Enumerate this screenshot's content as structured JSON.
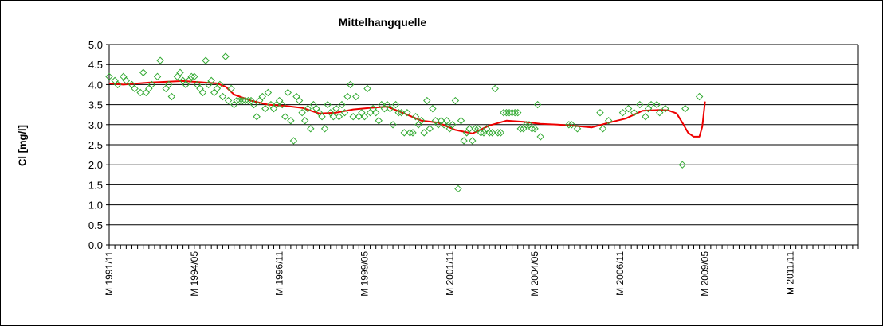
{
  "chart_data": {
    "type": "line",
    "title": "Mittelhangquelle",
    "xlabel": "",
    "ylabel": "Cl [mg/l]",
    "ylim": [
      0.0,
      5.0
    ],
    "yticks": [
      "0.0",
      "0.5",
      "1.0",
      "1.5",
      "2.0",
      "2.5",
      "3.0",
      "3.5",
      "4.0",
      "4.5",
      "5.0"
    ],
    "xlim": [
      "1991-11",
      "2013-11"
    ],
    "xticks": [
      {
        "label": "M 1991/11",
        "date": "1991-11"
      },
      {
        "label": "M 1994/05",
        "date": "1994-05"
      },
      {
        "label": "M 1996/11",
        "date": "1996-11"
      },
      {
        "label": "M 1999/05",
        "date": "1999-05"
      },
      {
        "label": "M 2001/11",
        "date": "2001-11"
      },
      {
        "label": "M 2004/05",
        "date": "2004-05"
      },
      {
        "label": "M 2006/11",
        "date": "2006-11"
      },
      {
        "label": "M 2009/05",
        "date": "2009-05"
      },
      {
        "label": "M 2011/11",
        "date": "2011-11"
      }
    ],
    "grid": true,
    "legend": "none",
    "colors": {
      "points": "#33aa33",
      "line": "#ee0000",
      "grid": "#000000"
    },
    "series": [
      {
        "marker": "diamond",
        "x": [
          "1991-11",
          "1992-01",
          "1992-02",
          "1992-04",
          "1992-05",
          "1992-07",
          "1992-08",
          "1992-10",
          "1992-11",
          "1992-12",
          "1993-01",
          "1993-02",
          "1993-04",
          "1993-05",
          "1993-07",
          "1993-08",
          "1993-09",
          "1993-11",
          "1993-12",
          "1994-01",
          "1994-02",
          "1994-03",
          "1994-04",
          "1994-05",
          "1994-06",
          "1994-07",
          "1994-08",
          "1994-09",
          "1994-10",
          "1994-11",
          "1994-12",
          "1995-01",
          "1995-02",
          "1995-03",
          "1995-04",
          "1995-05",
          "1995-06",
          "1995-07",
          "1995-08",
          "1995-09",
          "1995-10",
          "1995-11",
          "1995-12",
          "1996-01",
          "1996-02",
          "1996-03",
          "1996-04",
          "1996-05",
          "1996-06",
          "1996-07",
          "1996-08",
          "1996-09",
          "1996-10",
          "1996-11",
          "1996-12",
          "1997-01",
          "1997-02",
          "1997-03",
          "1997-04",
          "1997-05",
          "1997-06",
          "1997-07",
          "1997-08",
          "1997-09",
          "1997-10",
          "1997-11",
          "1997-12",
          "1998-01",
          "1998-02",
          "1998-03",
          "1998-04",
          "1998-05",
          "1998-06",
          "1998-07",
          "1998-08",
          "1998-09",
          "1998-10",
          "1998-11",
          "1998-12",
          "1999-01",
          "1999-02",
          "1999-03",
          "1999-04",
          "1999-05",
          "1999-06",
          "1999-07",
          "1999-08",
          "1999-09",
          "1999-10",
          "1999-11",
          "1999-12",
          "2000-01",
          "2000-02",
          "2000-03",
          "2000-04",
          "2000-05",
          "2000-06",
          "2000-07",
          "2000-08",
          "2000-09",
          "2000-10",
          "2000-11",
          "2000-12",
          "2001-01",
          "2001-02",
          "2001-03",
          "2001-04",
          "2001-05",
          "2001-06",
          "2001-07",
          "2001-08",
          "2001-09",
          "2001-10",
          "2001-11",
          "2001-12",
          "2002-01",
          "2002-02",
          "2002-03",
          "2002-04",
          "2002-05",
          "2002-06",
          "2002-07",
          "2002-08",
          "2002-09",
          "2002-10",
          "2002-11",
          "2002-12",
          "2003-01",
          "2003-02",
          "2003-03",
          "2003-04",
          "2003-05",
          "2003-06",
          "2003-07",
          "2003-08",
          "2003-09",
          "2003-10",
          "2003-11",
          "2003-12",
          "2004-01",
          "2004-02",
          "2004-03",
          "2004-04",
          "2004-05",
          "2004-06",
          "2004-07",
          "2005-05",
          "2005-06",
          "2005-08",
          "2006-04",
          "2006-05",
          "2006-07",
          "2006-12",
          "2007-02",
          "2007-04",
          "2007-06",
          "2007-08",
          "2007-09",
          "2007-10",
          "2007-12",
          "2008-01",
          "2008-03",
          "2008-09",
          "2008-10",
          "2009-03"
        ],
        "y": [
          4.2,
          4.1,
          4.0,
          4.2,
          4.1,
          4.0,
          3.9,
          3.8,
          4.3,
          3.8,
          3.9,
          4.0,
          4.2,
          4.6,
          3.9,
          4.0,
          3.7,
          4.2,
          4.3,
          4.1,
          4.0,
          4.1,
          4.2,
          4.2,
          4.0,
          3.9,
          3.8,
          4.6,
          4.0,
          4.1,
          3.8,
          3.9,
          4.0,
          3.7,
          4.7,
          3.6,
          3.9,
          3.5,
          3.6,
          3.6,
          3.6,
          3.6,
          3.6,
          3.6,
          3.5,
          3.2,
          3.6,
          3.7,
          3.4,
          3.8,
          3.5,
          3.4,
          3.5,
          3.6,
          3.5,
          3.2,
          3.8,
          3.1,
          2.6,
          3.7,
          3.6,
          3.3,
          3.1,
          3.4,
          2.9,
          3.5,
          3.4,
          3.3,
          3.2,
          2.9,
          3.5,
          3.3,
          3.2,
          3.4,
          3.2,
          3.5,
          3.3,
          3.7,
          4.0,
          3.2,
          3.7,
          3.2,
          3.3,
          3.2,
          3.9,
          3.3,
          3.4,
          3.3,
          3.1,
          3.5,
          3.4,
          3.5,
          3.4,
          3.0,
          3.5,
          3.3,
          3.3,
          2.8,
          3.3,
          2.8,
          2.8,
          3.2,
          3.0,
          3.1,
          2.8,
          3.6,
          2.9,
          3.4,
          3.1,
          3.0,
          3.1,
          3.0,
          3.1,
          2.9,
          3.0,
          3.6,
          1.4,
          3.1,
          2.6,
          2.8,
          2.9,
          2.6,
          2.9,
          2.9,
          2.8,
          2.8,
          2.9,
          2.8,
          2.8,
          3.9,
          2.8,
          2.8,
          3.3,
          3.3,
          3.3,
          3.3,
          3.3,
          3.3,
          2.9,
          2.9,
          3.0,
          3.0,
          2.9,
          2.9,
          3.5,
          2.7,
          3.0,
          3.0,
          2.9,
          3.3,
          2.9,
          3.1,
          3.3,
          3.4,
          3.3,
          3.5,
          3.2,
          3.4,
          3.5,
          3.5,
          3.3,
          3.4,
          2.0,
          3.4,
          3.7
        ]
      },
      {
        "marker": "line",
        "x": [
          "1991-11",
          "1992-04",
          "1993-01",
          "1993-07",
          "1994-01",
          "1994-07",
          "1995-01",
          "1995-04",
          "1995-07",
          "1996-01",
          "1996-07",
          "1997-01",
          "1997-07",
          "1998-01",
          "1998-07",
          "1999-01",
          "1999-07",
          "2000-01",
          "2000-07",
          "2001-01",
          "2001-07",
          "2002-01",
          "2002-07",
          "2003-01",
          "2003-07",
          "2004-01",
          "2004-07",
          "2005-01",
          "2005-07",
          "2006-01",
          "2006-07",
          "2007-01",
          "2007-07",
          "2008-01",
          "2008-04",
          "2008-07",
          "2008-09",
          "2008-11",
          "2009-01",
          "2009-03",
          "2009-04",
          "2009-05"
        ],
        "y": [
          4.03,
          4.0,
          4.05,
          4.07,
          4.09,
          4.06,
          4.03,
          3.95,
          3.75,
          3.6,
          3.5,
          3.47,
          3.42,
          3.28,
          3.3,
          3.38,
          3.42,
          3.45,
          3.28,
          3.1,
          3.05,
          2.87,
          2.78,
          2.98,
          3.1,
          3.07,
          3.02,
          3.0,
          2.97,
          2.93,
          3.05,
          3.15,
          3.35,
          3.37,
          3.36,
          3.28,
          3.05,
          2.8,
          2.7,
          2.7,
          2.95,
          3.58
        ]
      }
    ]
  }
}
